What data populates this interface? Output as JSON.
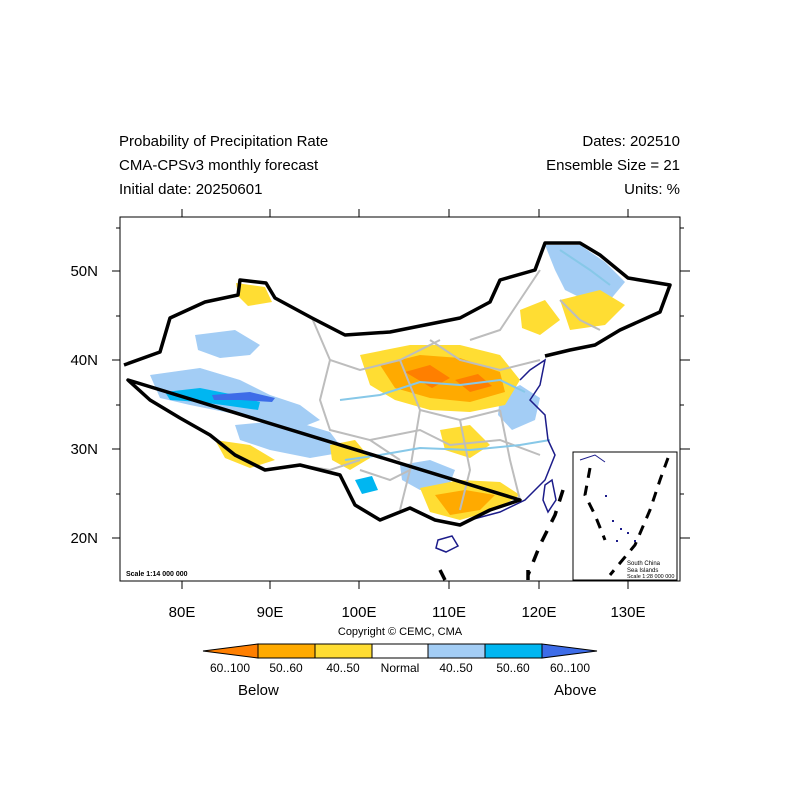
{
  "header": {
    "title_line1": "Probability of Precipitation Rate",
    "title_line2": "CMA-CPSv3 monthly forecast",
    "title_line3": "Initial date: 20250601",
    "dates": "Dates: 202510",
    "ensemble": "Ensemble Size = 21",
    "units": "Units: %"
  },
  "map": {
    "lat_ticks": [
      "50N",
      "40N",
      "30N",
      "20N"
    ],
    "lon_ticks": [
      "80E",
      "90E",
      "100E",
      "110E",
      "120E",
      "130E"
    ],
    "scale_label": "Scale 1:14 000 000",
    "inset": {
      "line1": "South China",
      "line2": "Sea Islands",
      "line3": "Scale 1:28 000 000"
    }
  },
  "copyright": "Copyright © CEMC, CMA",
  "colorbar": {
    "bins": [
      {
        "label": "60..100",
        "color": "#ff7f00"
      },
      {
        "label": "50..60",
        "color": "#ffaa00"
      },
      {
        "label": "40..50",
        "color": "#ffdd33"
      },
      {
        "label": "Normal",
        "color": "#ffffff"
      },
      {
        "label": "40..50",
        "color": "#a3cdf5"
      },
      {
        "label": "50..60",
        "color": "#00b6f1"
      },
      {
        "label": "60..100",
        "color": "#3d6ce8"
      }
    ],
    "below_label": "Below",
    "above_label": "Above"
  }
}
